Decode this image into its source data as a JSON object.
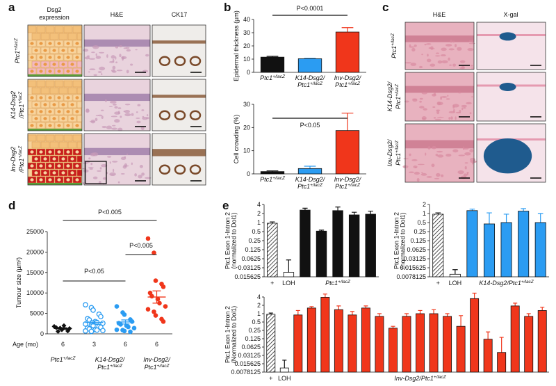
{
  "panel_labels": [
    "a",
    "b",
    "c",
    "d",
    "e"
  ],
  "panel_a": {
    "headers": [
      {
        "lines": [
          {
            "text": "Dsg2"
          },
          {
            "text": "expression"
          }
        ]
      },
      {
        "lines": [
          {
            "text": "H&E"
          }
        ]
      },
      {
        "lines": [
          {
            "text": "CK17"
          }
        ]
      }
    ],
    "row_labels": [
      {
        "lines": [
          {
            "text": "Ptc1",
            "sup": "+/lacZ"
          }
        ]
      },
      {
        "lines": [
          {
            "text": "K14-Dsg2"
          },
          {
            "text": "/Ptc1",
            "sup": "+/lacZ"
          }
        ]
      },
      {
        "lines": [
          {
            "text": "Inv-Dsg2"
          },
          {
            "text": "/Ptc1",
            "sup": "+/lacZ"
          }
        ]
      }
    ]
  },
  "panel_c": {
    "headers": [
      {
        "lines": [
          {
            "text": "H&E"
          }
        ]
      },
      {
        "lines": [
          {
            "text": "X-gal"
          }
        ]
      }
    ],
    "row_labels": [
      {
        "lines": [
          {
            "text": "Ptc1",
            "sup": "+/lacZ"
          }
        ]
      },
      {
        "lines": [
          {
            "text": "K14-Dsg2/"
          },
          {
            "text": "Ptc1",
            "sup": "+/lacZ"
          }
        ]
      },
      {
        "lines": [
          {
            "text": "Inv-Dsg2/"
          },
          {
            "text": "Ptc1",
            "sup": "+/lacZ"
          }
        ]
      }
    ]
  },
  "chart_data": [
    {
      "type": "bar",
      "ylabel": "Epidermal thickness (µm)",
      "ylim": [
        0,
        40
      ],
      "yticks": [
        0,
        10,
        20,
        30,
        40
      ],
      "categories": [
        {
          "lines": [
            {
              "text": "Ptc1",
              "sup": "+/lacZ"
            }
          ]
        },
        {
          "lines": [
            {
              "text": "K14-Dsg2/"
            },
            {
              "text": "Ptc1",
              "sup": "+/lacZ"
            }
          ]
        },
        {
          "lines": [
            {
              "text": "Inv-Dsg2/"
            },
            {
              "text": "Ptc1",
              "sup": "+/lacZ"
            }
          ]
        }
      ],
      "values": [
        11.5,
        10.3,
        30.5
      ],
      "errors": [
        0.6,
        0.3,
        3.3
      ],
      "colors": [
        "#111111",
        "#2b9cf2",
        "#f0361b"
      ],
      "annotation": "P<0.0001"
    },
    {
      "type": "bar",
      "ylabel": "Cell crowding (%)",
      "ylim": [
        0,
        30
      ],
      "yticks": [
        0,
        10,
        20,
        30
      ],
      "categories": [
        {
          "lines": [
            {
              "text": "Ptc1",
              "sup": "+/lacZ"
            }
          ]
        },
        {
          "lines": [
            {
              "text": "K14-Dsg2/"
            },
            {
              "text": "Ptc1",
              "sup": "+/lacZ"
            }
          ]
        },
        {
          "lines": [
            {
              "text": "Inv-Dsg2/"
            },
            {
              "text": "Ptc1",
              "sup": "+/lacZ"
            }
          ]
        }
      ],
      "values": [
        1,
        2.3,
        18.7
      ],
      "errors": [
        0.3,
        1,
        7.5
      ],
      "colors": [
        "#111111",
        "#2b9cf2",
        "#f0361b"
      ],
      "annotation": "P<0.05"
    },
    {
      "type": "strip",
      "ylabel": "Tumour size (µm²)",
      "ylim": [
        0,
        25000
      ],
      "yticks": [
        0,
        5000,
        10000,
        15000,
        20000,
        25000
      ],
      "age_label": "Age (mo)",
      "series": [
        {
          "color": "#111111",
          "marker": "diamond",
          "age": 6,
          "mean": 1300,
          "sem": 200,
          "values": [
            1800,
            1400,
            1000,
            700,
            1300,
            1500,
            600,
            2000
          ]
        },
        {
          "color": "#2b9cf2",
          "marker": "open-circle",
          "age": 3,
          "mean": 2800,
          "sem": 400,
          "values": [
            7100,
            6400,
            5800,
            4800,
            4200,
            3700,
            3400,
            3000,
            2800,
            2600,
            2400,
            2200,
            2000,
            1800,
            1600,
            1400,
            1200,
            1000,
            900,
            800,
            700,
            600
          ]
        },
        {
          "color": "#2b9cf2",
          "marker": "circle",
          "age": 6,
          "mean": 2900,
          "sem": 500,
          "values": [
            6700,
            5200,
            4700,
            3500,
            3000,
            2600,
            2300,
            2000,
            1700,
            1400,
            1000,
            900,
            700,
            500
          ]
        },
        {
          "color": "#f0361b",
          "marker": "circle",
          "age": 6,
          "mean": 9000,
          "sem": 1500,
          "values": [
            23300,
            19800,
            13000,
            12200,
            11500,
            10000,
            9200,
            8500,
            7500,
            6700,
            6000,
            5400,
            4500,
            3600,
            3000
          ]
        }
      ],
      "groups": [
        {
          "lines": [
            {
              "text": "Ptc1",
              "sup": "+/lacZ"
            }
          ]
        },
        {
          "lines": [
            {
              "text": "K14-Dsg2/"
            },
            {
              "text": "Ptc1",
              "sup": "+/lacZ"
            }
          ]
        },
        {
          "lines": [
            {
              "text": "Inv-Dsg2/"
            },
            {
              "text": "Ptc1",
              "sup": "+/lacZ"
            }
          ]
        }
      ],
      "annotations": [
        "P<0.005",
        "P<0.05",
        "P<0.005"
      ]
    },
    {
      "type": "bar",
      "log_scale": true,
      "ylabel": {
        "lines": [
          {
            "text": "Ptc1 Exon 1-Intron 2"
          },
          {
            "text": "(normalized to Dol1)"
          }
        ]
      },
      "ylim": [
        0.015625,
        4
      ],
      "yticks": [
        4,
        2,
        1,
        0.5,
        0.25,
        0.125,
        0.0625,
        0.03125,
        0.015625
      ],
      "categories": [
        "+",
        "LOH",
        null,
        null,
        null,
        null,
        null
      ],
      "values": [
        0.95,
        0.022,
        2.6,
        0.52,
        2.5,
        1.8,
        1.9
      ],
      "errors": [
        0.1,
        0.035,
        0.4,
        0.04,
        0.8,
        0.4,
        0.5
      ],
      "fills": [
        "hatched",
        "#ffffff",
        "#111111",
        "#111111",
        "#111111",
        "#111111",
        "#111111"
      ],
      "group_label": {
        "lines": [
          {
            "text": "Ptc1",
            "sup": "+/lacZ"
          }
        ]
      }
    },
    {
      "type": "bar",
      "log_scale": true,
      "ylabel": {
        "lines": [
          {
            "text": "Ptc1 Exon 1-Intron 2"
          },
          {
            "text": "(normalized to Dol1)"
          }
        ]
      },
      "ylim": [
        0.0078125,
        2
      ],
      "yticks": [
        2,
        1,
        0.5,
        0.25,
        0.125,
        0.0625,
        0.03125,
        0.015625,
        0.0078125
      ],
      "categories": [
        "+",
        "LOH",
        null,
        null,
        null,
        null,
        null
      ],
      "values": [
        0.95,
        0.0095,
        1.25,
        0.45,
        0.5,
        1.2,
        0.5
      ],
      "errors": [
        0.1,
        0.004,
        0.15,
        0.6,
        0.45,
        0.25,
        0.5
      ],
      "fills": [
        "hatched",
        "#ffffff",
        "#2b9cf2",
        "#2b9cf2",
        "#2b9cf2",
        "#2b9cf2",
        "#2b9cf2"
      ],
      "group_label": {
        "lines": [
          {
            "text": "K14-Dsg2/Ptc1",
            "sup": "+/lacZ"
          }
        ]
      }
    },
    {
      "type": "bar",
      "log_scale": true,
      "ylabel": {
        "lines": [
          {
            "text": "Ptc1 Exon 1-Intron 2"
          },
          {
            "text": "(Normalized to Dol1)"
          }
        ]
      },
      "ylim": [
        0.0078125,
        4
      ],
      "yticks": [
        4,
        2,
        1,
        0.5,
        0.25,
        0.125,
        0.0625,
        0.03125,
        0.015625,
        0.0078125
      ],
      "categories": [
        "+",
        "LOH",
        null,
        null,
        null,
        null,
        null,
        null,
        null,
        null,
        null,
        null,
        null,
        null,
        null,
        null,
        null,
        null,
        null,
        null,
        null
      ],
      "values": [
        0.95,
        0.011,
        0.9,
        1.6,
        3.9,
        1.4,
        0.9,
        1.6,
        0.8,
        0.3,
        0.8,
        1.0,
        1.0,
        0.8,
        0.35,
        3.5,
        0.12,
        0.04,
        1.9,
        0.8,
        1.3
      ],
      "errors": [
        0.1,
        0.01,
        0.4,
        0.2,
        1.2,
        0.5,
        0.3,
        0.3,
        0.2,
        0.05,
        0.2,
        0.3,
        0.4,
        0.2,
        0.5,
        2.0,
        0.1,
        0.1,
        0.5,
        0.2,
        0.4
      ],
      "fills": [
        "hatched",
        "#ffffff",
        "#f0361b",
        "#f0361b",
        "#f0361b",
        "#f0361b",
        "#f0361b",
        "#f0361b",
        "#f0361b",
        "#f0361b",
        "#f0361b",
        "#f0361b",
        "#f0361b",
        "#f0361b",
        "#f0361b",
        "#f0361b",
        "#f0361b",
        "#f0361b",
        "#f0361b",
        "#f0361b",
        "#f0361b"
      ],
      "group_label": {
        "lines": [
          {
            "text": "Inv-Dsg2/Ptc1",
            "sup": "+/lacZ"
          }
        ]
      }
    }
  ]
}
